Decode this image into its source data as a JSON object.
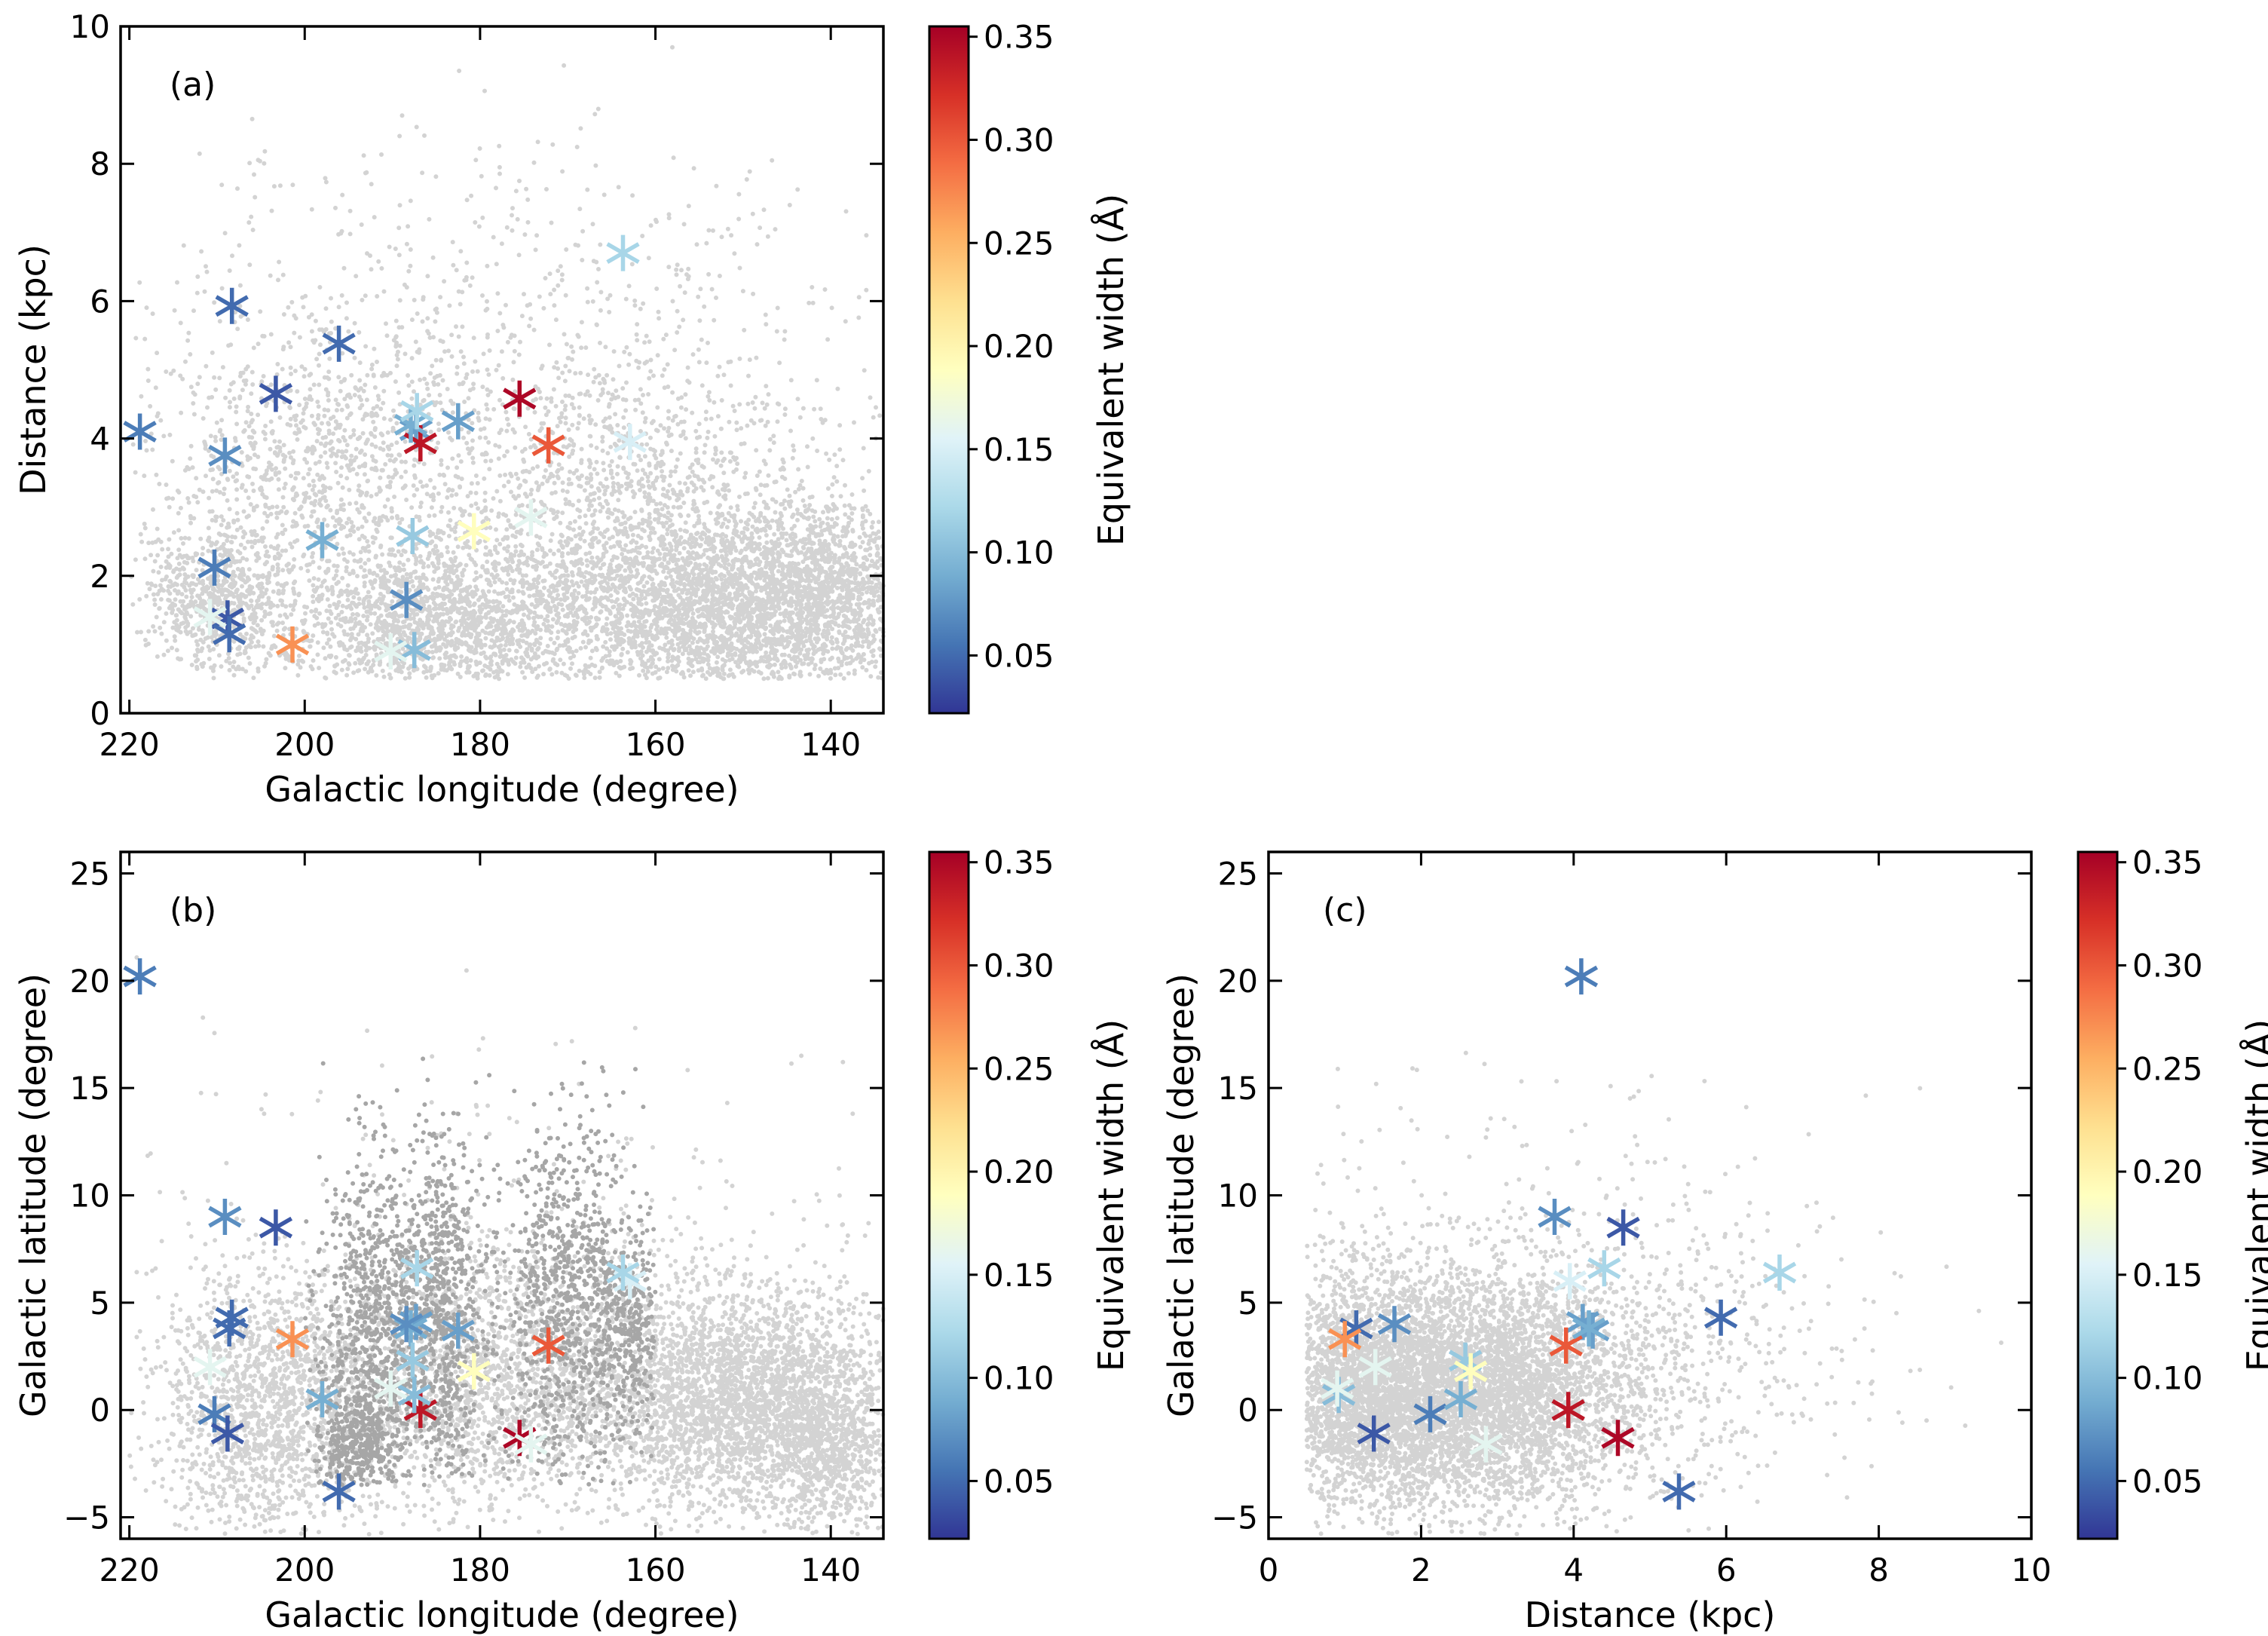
{
  "colors": {
    "background_points": "#d3d3d3",
    "highlight_points": "#a6a6a6",
    "colormap": [
      "#313695",
      "#4575b4",
      "#74add1",
      "#abd9e9",
      "#e0f3f8",
      "#ffffbf",
      "#fee090",
      "#fdae61",
      "#f46d43",
      "#d73027",
      "#a50026"
    ]
  },
  "colorbar": {
    "label": "Equivalent width (Å)",
    "range": [
      0.022,
      0.355
    ],
    "tick_values": [
      0.05,
      0.1,
      0.15,
      0.2,
      0.25,
      0.3,
      0.35
    ],
    "tick_labels": [
      "0.05",
      "0.10",
      "0.15",
      "0.20",
      "0.25",
      "0.30",
      "0.35"
    ]
  },
  "chart_data": [
    {
      "type": "scatter",
      "panel": "(a)",
      "xlabel": "Galactic longitude (degree)",
      "ylabel": "Distance (kpc)",
      "xlim": [
        221,
        134
      ],
      "ylim": [
        0,
        10
      ],
      "xticks": [
        220,
        200,
        180,
        160,
        140
      ],
      "yticks": [
        0,
        2,
        4,
        6,
        8,
        10
      ],
      "xtick_labels": [
        "220",
        "200",
        "180",
        "160",
        "140"
      ],
      "ytick_labels": [
        "0",
        "2",
        "4",
        "6",
        "8",
        "10"
      ],
      "background": "approximately 9000 light-grey field stars, densest at 1-3 kpc for l = 140-190"
    },
    {
      "type": "scatter",
      "panel": "(b)",
      "xlabel": "Galactic longitude (degree)",
      "ylabel": "Galactic latitude (degree)",
      "xlim": [
        221,
        134
      ],
      "ylim": [
        -6,
        26
      ],
      "xticks": [
        220,
        200,
        180,
        160,
        140
      ],
      "yticks": [
        -5,
        0,
        5,
        10,
        15,
        20,
        25
      ],
      "xtick_labels": [
        "220",
        "200",
        "180",
        "160",
        "140"
      ],
      "ytick_labels": [
        "−5",
        "0",
        "5",
        "10",
        "15",
        "20",
        "25"
      ],
      "background": "light-grey field stars plus darker-grey stars tracing cloud structures near l = 165-197"
    },
    {
      "type": "scatter",
      "panel": "(c)",
      "xlabel": "Distance (kpc)",
      "ylabel": "Galactic latitude (degree)",
      "xlim": [
        0,
        10
      ],
      "ylim": [
        -6,
        26
      ],
      "xticks": [
        0,
        2,
        4,
        6,
        8,
        10
      ],
      "yticks": [
        -5,
        0,
        5,
        10,
        15,
        20,
        25
      ],
      "xtick_labels": [
        "0",
        "2",
        "4",
        "6",
        "8",
        "10"
      ],
      "ytick_labels": [
        "−5",
        "0",
        "5",
        "10",
        "15",
        "20",
        "25"
      ],
      "background": "light-grey field stars concentrated at distance 0.5-5 kpc"
    }
  ],
  "stars": {
    "columns": [
      "galactic_longitude",
      "galactic_latitude",
      "distance_kpc",
      "equivalent_width_A"
    ],
    "rows": [
      [
        218.8,
        20.2,
        4.1,
        0.06
      ],
      [
        209.1,
        9.0,
        3.75,
        0.07
      ],
      [
        203.3,
        8.5,
        4.65,
        0.04
      ],
      [
        187.3,
        4.1,
        4.12,
        0.08
      ],
      [
        182.5,
        3.7,
        4.25,
        0.08
      ],
      [
        196.1,
        -3.8,
        5.38,
        0.05
      ],
      [
        175.5,
        -1.3,
        4.58,
        0.35
      ],
      [
        186.8,
        0.0,
        3.93,
        0.34
      ],
      [
        172.2,
        3.0,
        3.9,
        0.3
      ],
      [
        187.9,
        3.8,
        4.2,
        0.09
      ],
      [
        210.3,
        -0.2,
        2.12,
        0.06
      ],
      [
        208.3,
        4.3,
        5.93,
        0.05
      ],
      [
        208.8,
        -1.1,
        1.38,
        0.04
      ],
      [
        208.6,
        3.8,
        1.15,
        0.05
      ],
      [
        201.4,
        3.3,
        1.0,
        0.27
      ],
      [
        198.0,
        0.5,
        2.52,
        0.09
      ],
      [
        188.4,
        4.0,
        1.65,
        0.07
      ],
      [
        187.7,
        2.3,
        2.58,
        0.11
      ],
      [
        180.7,
        1.8,
        2.65,
        0.19
      ],
      [
        162.9,
        6.0,
        3.95,
        0.15
      ],
      [
        163.7,
        6.4,
        6.7,
        0.12
      ],
      [
        187.2,
        6.6,
        4.4,
        0.12
      ],
      [
        187.5,
        0.7,
        0.92,
        0.1
      ],
      [
        210.8,
        2.0,
        1.4,
        0.16
      ],
      [
        174.2,
        -1.6,
        2.85,
        0.16
      ],
      [
        190.2,
        1.0,
        0.9,
        0.16
      ]
    ]
  }
}
